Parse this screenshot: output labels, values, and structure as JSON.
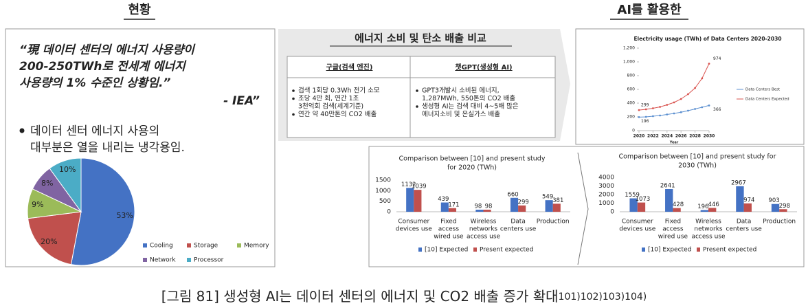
{
  "headings": {
    "left": "현황",
    "right": "AI를 활용한"
  },
  "quote": {
    "lines": [
      "“現 데이터 센터의 에너지 사용량이",
      "200-250TWh로 전세계 에너지",
      "사용량의 1% 수준인 상황임.”"
    ],
    "source": "- IEA”"
  },
  "bullet": [
    "데이터 센터 에너지 사용의",
    "대부분은 열을 내리는 냉각용임."
  ],
  "comparison": {
    "title": "에너지 소비 및 탄소 배출 비교",
    "columns": [
      {
        "header": "구글(검색 엔진)",
        "items": [
          [
            "검색 1회당 0.3Wh 전기 소모"
          ],
          [
            "조당 4만 회, 연간 1조",
            "3천억회 검색(세계기준)"
          ],
          [
            "연간 약 40만톤의 CO2 배출"
          ]
        ]
      },
      {
        "header": "챗GPT(생성형 AI)",
        "items": [
          [
            "GPT3개발시 소비된 에너지,",
            "1,287MWh, 550톤의 CO2 배출"
          ],
          [
            "생성형 AI는 검색 대비 4~5배 많은",
            "에너지소비 및 온실가스 배출"
          ]
        ]
      }
    ]
  },
  "chart_data": [
    {
      "type": "pie",
      "categories": [
        "Cooling",
        "Storage",
        "Memory",
        "Network",
        "Processor"
      ],
      "values": [
        53,
        20,
        9,
        8,
        10
      ],
      "value_labels": [
        "53%",
        "20%",
        "9%",
        "8%",
        "10%"
      ],
      "colors": [
        "#4472c4",
        "#c0504d",
        "#9bbb59",
        "#8064a2",
        "#4bacc6"
      ],
      "legend": "bottom-right"
    },
    {
      "type": "line",
      "title": "Electricity usage (TWh) of Data Centers 2020-2030",
      "x_label": "Year",
      "x": [
        2020,
        2021,
        2022,
        2023,
        2024,
        2025,
        2026,
        2027,
        2028,
        2029,
        2030
      ],
      "series": [
        {
          "name": "Data Centers Best",
          "color": "#5b8fd0",
          "values": [
            196,
            200,
            210,
            220,
            235,
            250,
            268,
            290,
            315,
            340,
            366
          ]
        },
        {
          "name": "Data Centers Expected",
          "color": "#d9534f",
          "values": [
            299,
            310,
            325,
            345,
            375,
            410,
            460,
            530,
            620,
            760,
            974
          ]
        }
      ],
      "xlim": [
        2020,
        2030
      ],
      "xticks": [
        2020,
        2022,
        2024,
        2026,
        2028,
        2030
      ],
      "ylim": [
        0,
        1200
      ],
      "yticks": [
        0,
        200,
        400,
        600,
        800,
        {
          "value": 1000,
          "label": "1,000"
        },
        {
          "value": 1200,
          "label": "1,200"
        }
      ],
      "grid": false,
      "legend": "right"
    },
    {
      "type": "bar",
      "title": [
        "Comparison between [10] and present study",
        "for 2020 (TWh)"
      ],
      "categories": [
        [
          "Consumer",
          "devices use"
        ],
        [
          "Fixed",
          "access",
          "wired use"
        ],
        [
          "Wireless",
          "networks",
          "access use"
        ],
        [
          "Data",
          "centers use"
        ],
        [
          "Production"
        ]
      ],
      "series": [
        {
          "name": "[10] Expected",
          "color": "#4472c4",
          "values": [
            1132,
            439,
            98,
            660,
            549
          ]
        },
        {
          "name": "Present expected",
          "color": "#c0504d",
          "values": [
            1039,
            171,
            98,
            299,
            381
          ]
        }
      ],
      "ylim": [
        0,
        1500
      ],
      "yticks": [
        0,
        500,
        1000,
        1500
      ],
      "legend": "bottom"
    },
    {
      "type": "bar",
      "title": [
        "Comparison between [10] and present study for",
        "2030 (TWh)"
      ],
      "categories": [
        [
          "Consumer",
          "devices use"
        ],
        [
          "Fixed",
          "access",
          "wired use"
        ],
        [
          "Wireless",
          "networks",
          "access use"
        ],
        [
          "Data",
          "centers use"
        ],
        [
          "Production"
        ]
      ],
      "series": [
        {
          "name": "[10] Expected",
          "color": "#4472c4",
          "values": [
            1559,
            2641,
            196,
            2967,
            903
          ]
        },
        {
          "name": "Present expected",
          "color": "#c0504d",
          "values": [
            1073,
            428,
            446,
            974,
            298
          ]
        }
      ],
      "ylim": [
        0,
        4000
      ],
      "yticks": [
        0,
        1000,
        2000,
        3000,
        4000
      ],
      "legend": "bottom"
    }
  ],
  "caption": {
    "text": "[그림 81] 생성형 AI는 데이터 센터의 에너지 및 CO2 배출 증가 확대",
    "refs": "101)102)103)104)"
  }
}
